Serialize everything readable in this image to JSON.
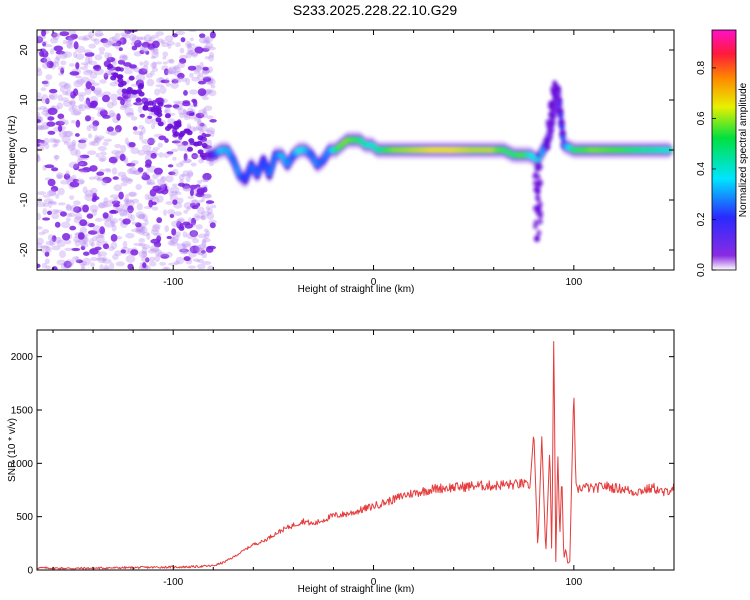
{
  "title": "S233.2025.228.22.10.G29",
  "colors": {
    "signal": "#e63c3c",
    "axis": "#000000",
    "noise": "#8a2be2"
  },
  "chart_data": [
    {
      "type": "heatmap",
      "title": "S233.2025.228.22.10.G29",
      "xlabel": "Height of straight line (km)",
      "ylabel": "Frequency (Hz)",
      "xlim": [
        -168,
        150
      ],
      "ylim": [
        -24,
        24
      ],
      "xticks": [
        -100,
        0,
        100
      ],
      "yticks": [
        20,
        10,
        0,
        -10,
        -20
      ],
      "colorbar": {
        "label": "Normalized spectral amplitude",
        "range": [
          0.0,
          0.95
        ],
        "ticks": [
          0.0,
          0.2,
          0.4,
          0.6,
          0.8
        ],
        "colormap": "rainbow (violet-blue-cyan-green-yellow-red-magenta)"
      },
      "noise_region": {
        "x_range": [
          -168,
          -80
        ],
        "amplitude": 0.1
      },
      "ridge": {
        "x": [
          -80,
          -76,
          -73,
          -70,
          -67,
          -64,
          -61,
          -58,
          -55,
          -52,
          -49,
          -46,
          -43,
          -40,
          -37,
          -34,
          -31,
          -28,
          -25,
          -22,
          -19,
          -16,
          -13,
          -10,
          -7,
          -4,
          -1,
          2,
          5,
          10,
          20,
          30,
          40,
          50,
          60,
          65,
          70,
          75,
          78,
          82,
          86,
          88,
          90,
          92,
          95,
          100,
          110,
          120,
          130,
          140,
          148
        ],
        "freq": [
          -1,
          0,
          0,
          -2,
          -5,
          -6,
          -3,
          -5,
          -2,
          -5,
          -1,
          -1,
          -3,
          -1,
          0,
          0,
          -1,
          -3,
          -2,
          0,
          0,
          1,
          2,
          2,
          2,
          1,
          1,
          0,
          0,
          0,
          0,
          0,
          0,
          0,
          0,
          0,
          -1,
          -1,
          -1,
          -2,
          1,
          3,
          8,
          12,
          1,
          0,
          0,
          0,
          0,
          0,
          0
        ],
        "amplitude": [
          0.2,
          0.45,
          0.4,
          0.3,
          0.35,
          0.25,
          0.3,
          0.3,
          0.25,
          0.3,
          0.3,
          0.4,
          0.35,
          0.3,
          0.5,
          0.45,
          0.3,
          0.35,
          0.3,
          0.35,
          0.55,
          0.7,
          0.75,
          0.7,
          0.6,
          0.55,
          0.5,
          0.55,
          0.6,
          0.75,
          0.8,
          0.85,
          0.85,
          0.8,
          0.8,
          0.65,
          0.6,
          0.7,
          0.5,
          0.45,
          0.3,
          0.1,
          0.1,
          0.1,
          0.3,
          0.6,
          0.75,
          0.7,
          0.6,
          0.55,
          0.5
        ]
      },
      "spike_feature": {
        "x": [
          80,
          90
        ],
        "freq_range": [
          -18,
          15
        ]
      }
    },
    {
      "type": "line",
      "xlabel": "Height of straight line (km)",
      "ylabel": "SNR (10 * v/v)",
      "xlim": [
        -168,
        150
      ],
      "ylim": [
        0,
        2250
      ],
      "xticks": [
        -100,
        0,
        100
      ],
      "yticks": [
        0,
        500,
        1000,
        1500,
        2000
      ],
      "series": [
        {
          "name": "SNR",
          "x": [
            -168,
            -150,
            -130,
            -110,
            -90,
            -80,
            -75,
            -70,
            -65,
            -60,
            -55,
            -50,
            -45,
            -40,
            -35,
            -30,
            -25,
            -20,
            -15,
            -10,
            -5,
            0,
            5,
            10,
            15,
            20,
            25,
            30,
            35,
            40,
            45,
            50,
            55,
            60,
            65,
            70,
            75,
            78,
            80,
            82,
            84,
            86,
            88,
            89,
            90,
            91,
            92,
            93,
            94,
            95,
            96,
            97,
            98,
            99,
            100,
            101,
            102,
            105,
            110,
            115,
            120,
            125,
            130,
            135,
            140,
            145,
            150
          ],
          "y": [
            20,
            15,
            20,
            25,
            30,
            40,
            70,
            120,
            180,
            240,
            270,
            330,
            380,
            420,
            460,
            430,
            470,
            510,
            520,
            540,
            570,
            600,
            630,
            660,
            700,
            720,
            740,
            760,
            770,
            775,
            780,
            790,
            790,
            790,
            800,
            800,
            810,
            760,
            1300,
            200,
            1250,
            150,
            1150,
            100,
            2250,
            80,
            1100,
            300,
            900,
            100,
            200,
            60,
            80,
            900,
            1700,
            820,
            760,
            780,
            760,
            790,
            770,
            760,
            730,
            750,
            770,
            720,
            780
          ]
        }
      ]
    }
  ]
}
